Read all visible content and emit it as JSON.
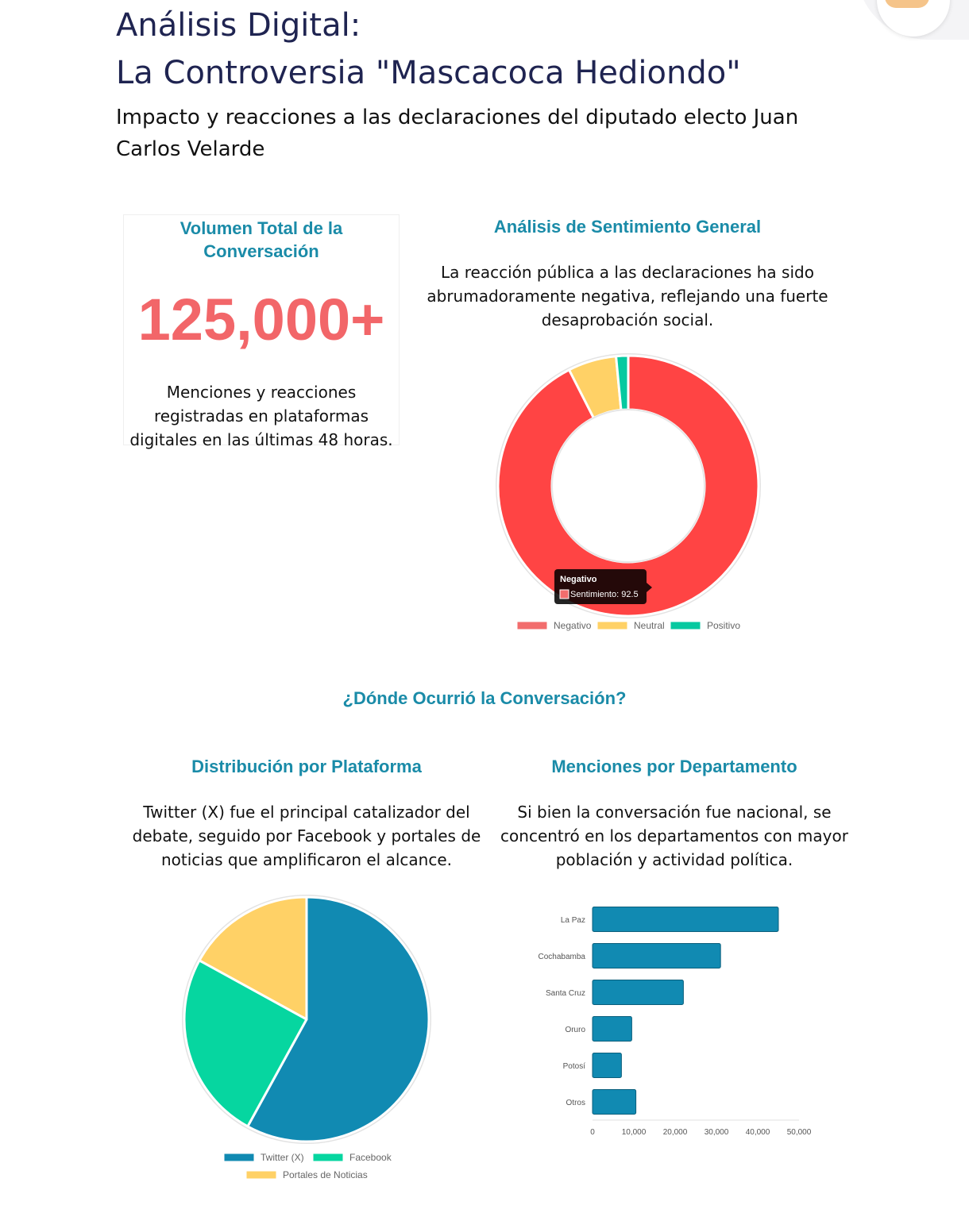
{
  "header": {
    "title_line1": "Análisis Digital:",
    "title_line2": "La Controversia \"Mascacoca Hediondo\"",
    "subtitle": "Impacto y reacciones a las declaraciones del diputado electo Juan Carlos Velarde"
  },
  "volume_card": {
    "title": "Volumen Total de la Conversación",
    "number": "125,000+",
    "description": "Menciones y reacciones registradas en plataformas digitales en las últimas 48 horas."
  },
  "sentiment": {
    "title": "Análisis de Sentimiento General",
    "description": "La reacción pública a las declaraciones ha sido abrumadoramente negativa, reflejando una fuerte desaprobación social.",
    "tooltip": {
      "title": "Negativo",
      "label": "Sentimiento: 92.5"
    }
  },
  "where_section": {
    "title": "¿Dónde Ocurrió la Conversación?"
  },
  "platform": {
    "title": "Distribución por Plataforma",
    "description": "Twitter (X) fue el principal catalizador del debate, seguido por Facebook y portales de noticias que amplificaron el alcance."
  },
  "department": {
    "title": "Menciones por Departamento",
    "description": "Si bien la conversación fue nacional, se concentró en los departamentos con mayor población y actividad política."
  },
  "chart_data": [
    {
      "type": "pie",
      "variant": "doughnut",
      "categories": [
        "Negativo",
        "Neutral",
        "Positivo"
      ],
      "values": [
        92.5,
        6,
        1.5
      ],
      "colors": [
        "#ff4444",
        "#ffd166",
        "#06c9a0"
      ],
      "legend_colors": [
        "#f26d6d",
        "#ffd166",
        "#06c9a0"
      ],
      "legend_position": "bottom"
    },
    {
      "type": "pie",
      "categories": [
        "Twitter (X)",
        "Facebook",
        "Portales de Noticias"
      ],
      "values": [
        58,
        25,
        17
      ],
      "colors": [
        "#118ab2",
        "#06d6a0",
        "#ffd166"
      ],
      "legend_position": "bottom"
    },
    {
      "type": "bar",
      "orientation": "horizontal",
      "categories": [
        "La Paz",
        "Cochabamba",
        "Santa Cruz",
        "Oruro",
        "Potosí",
        "Otros"
      ],
      "values": [
        45000,
        31000,
        22000,
        9500,
        7000,
        10500
      ],
      "xlim": [
        0,
        50000
      ],
      "xticks": [
        "0",
        "10,000",
        "20,000",
        "30,000",
        "40,000",
        "50,000"
      ],
      "color": "#118ab2",
      "grid": false
    }
  ]
}
